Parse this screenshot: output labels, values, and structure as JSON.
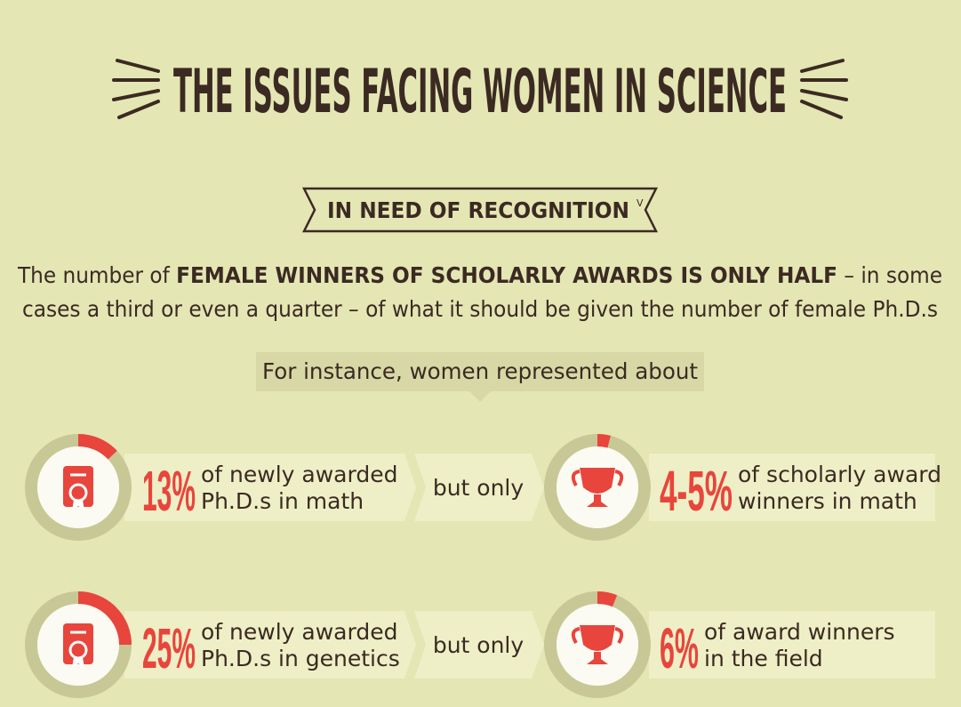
{
  "header": {
    "title": "THE ISSUES FACING WOMEN IN SCIENCE"
  },
  "section": {
    "label": "IN NEED OF RECOGNITION",
    "marker": "V"
  },
  "intro": {
    "lead": "The number of ",
    "emphasis": "FEMALE WINNERS OF SCHOLARLY AWARDS IS ONLY HALF",
    "tail_line1": " – in some",
    "tail_line2": "cases a third or even a quarter – of what it should be given the number of female Ph.D.s"
  },
  "callout": "For instance, women represented about",
  "rows": [
    {
      "left": {
        "stat": "13%",
        "text": [
          "of newly awarded",
          "Ph.D.s in math"
        ]
      },
      "connector": "but only",
      "right": {
        "stat": "4-5%",
        "text": [
          "of scholarly award",
          "winners in math"
        ]
      }
    },
    {
      "left": {
        "stat": "25%",
        "text": [
          "of newly awarded",
          "Ph.D.s in genetics"
        ]
      },
      "connector": "but only",
      "right": {
        "stat": "6%",
        "text": [
          "of award winners",
          "in the field"
        ]
      }
    }
  ]
}
